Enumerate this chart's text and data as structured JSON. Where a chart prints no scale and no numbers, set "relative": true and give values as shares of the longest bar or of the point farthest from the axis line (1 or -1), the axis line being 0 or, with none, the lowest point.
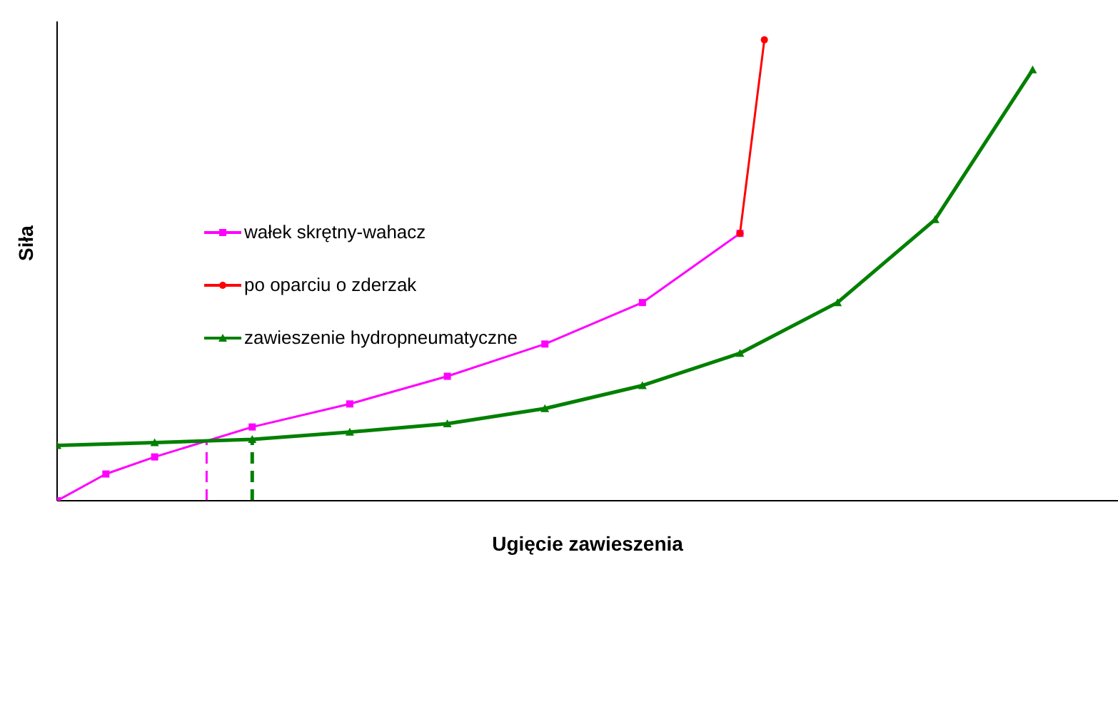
{
  "chart_data": {
    "type": "line",
    "xlabel": "Ugięcie zawieszenia",
    "ylabel": "Siła",
    "relative": true,
    "legend": "left",
    "categories": [
      null,
      null,
      null,
      null,
      null,
      null,
      null,
      null,
      null,
      null,
      null,
      null,
      null,
      null,
      null,
      null,
      null,
      null,
      null,
      null,
      null,
      null,
      null,
      null,
      null,
      null,
      null,
      null,
      null,
      null,
      null,
      null,
      null,
      null,
      null,
      null,
      null,
      null,
      null,
      null,
      null,
      null,
      null,
      null
    ],
    "series": [
      {
        "name": "wałek skrętny-wahacz",
        "color": "#ff00ff",
        "marker": "square",
        "values": [
          0,
          null,
          0.058,
          null,
          0.095,
          null,
          null,
          null,
          0.16,
          null,
          null,
          null,
          0.21,
          null,
          null,
          null,
          0.27,
          null,
          null,
          null,
          0.34,
          null,
          null,
          null,
          0.43,
          null,
          null,
          null,
          0.58,
          null,
          null,
          null,
          null,
          null,
          null,
          null,
          null,
          null,
          null,
          null,
          null,
          null,
          null,
          null
        ]
      },
      {
        "name": "po oparciu o zderzak",
        "color": "#ff0000",
        "marker": "circle",
        "values": [
          null,
          null,
          null,
          null,
          null,
          null,
          null,
          null,
          null,
          null,
          null,
          null,
          null,
          null,
          null,
          null,
          null,
          null,
          null,
          null,
          null,
          null,
          null,
          null,
          null,
          null,
          null,
          null,
          0.58,
          1,
          null,
          null,
          null,
          null,
          null,
          null,
          null,
          null,
          null,
          null,
          null,
          null,
          null,
          null
        ]
      },
      {
        "name": "zawieszenie hydropneumatyczne",
        "color": "#008000",
        "marker": "triangle",
        "values": [
          0.12,
          null,
          null,
          null,
          0.126,
          null,
          null,
          null,
          0.133,
          null,
          null,
          null,
          0.149,
          null,
          null,
          null,
          0.167,
          null,
          null,
          null,
          0.2,
          null,
          null,
          null,
          0.25,
          null,
          null,
          null,
          0.32,
          null,
          null,
          null,
          0.43,
          null,
          null,
          null,
          0.61,
          null,
          null,
          null,
          0.935,
          null,
          null,
          null
        ]
      }
    ]
  }
}
